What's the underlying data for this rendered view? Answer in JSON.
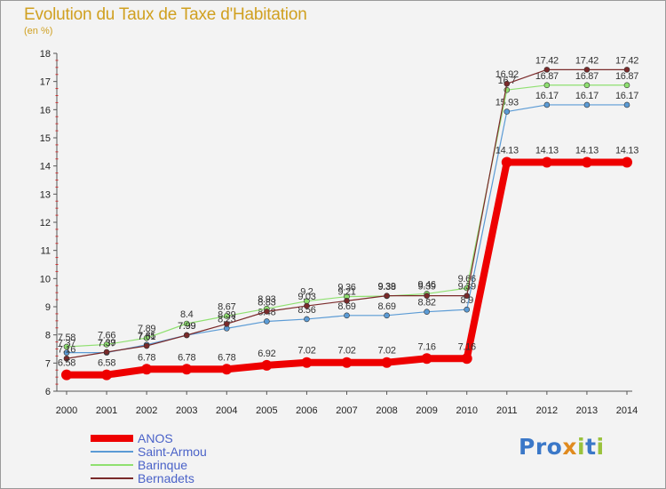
{
  "title": "Evolution du Taux de Taxe d'Habitation",
  "unit": "(en %)",
  "logo": "Proxiti",
  "colors": {
    "ANOS": "#ee0000",
    "Saint-Armou": "#5b9bd5",
    "Barinque": "#8fe070",
    "Bernadets": "#7a2a2a",
    "axis_text": "#222222",
    "legend_text": "#4a62c8",
    "title": "#d0a020"
  },
  "chart_data": {
    "type": "line",
    "x": [
      2000,
      2001,
      2002,
      2003,
      2004,
      2005,
      2006,
      2007,
      2008,
      2009,
      2010,
      2011,
      2012,
      2013,
      2014
    ],
    "ylim": [
      6,
      18
    ],
    "yticks": [
      6,
      7,
      8,
      9,
      10,
      11,
      12,
      13,
      14,
      15,
      16,
      17,
      18
    ],
    "grid": false,
    "legend_position": "bottom-left",
    "series": [
      {
        "name": "ANOS",
        "values": [
          6.58,
          6.58,
          6.78,
          6.78,
          6.78,
          6.92,
          7.02,
          7.02,
          7.02,
          7.16,
          7.16,
          14.13,
          14.13,
          14.13,
          14.13
        ],
        "labels": [
          "6.58",
          "6.58",
          "6.78",
          "6.78",
          "6.78",
          "6.92",
          "7.02",
          "7.02",
          "7.02",
          "7.16",
          "7.16",
          "14.13",
          "14.13",
          "14.13",
          "14.13"
        ]
      },
      {
        "name": "Saint-Armou",
        "values": [
          7.37,
          7.37,
          7.65,
          7.99,
          8.23,
          8.48,
          8.56,
          8.69,
          8.69,
          8.82,
          8.9,
          15.93,
          16.17,
          16.17,
          16.17
        ],
        "labels": [
          "7.37",
          "7.37",
          "7.65",
          "7.99",
          "8.23",
          "8.48",
          "8.56",
          "8.69",
          "8.69",
          "8.82",
          "8.9",
          "15.93",
          "16.17",
          "16.17",
          "16.17"
        ]
      },
      {
        "name": "Barinque",
        "values": [
          7.58,
          7.66,
          7.89,
          8.4,
          8.67,
          8.93,
          9.2,
          9.36,
          9.38,
          9.46,
          9.66,
          16.7,
          16.87,
          16.87,
          16.87
        ],
        "labels": [
          "7.58",
          "7.66",
          "7.89",
          "8.4",
          "8.67",
          "8.93",
          "9.2",
          "9.36",
          "9.38",
          "9.46",
          "9.66",
          "16.7",
          "16.87",
          "16.87",
          "16.87"
        ]
      },
      {
        "name": "Bernadets",
        "values": [
          7.16,
          7.39,
          7.61,
          7.99,
          8.39,
          8.83,
          9.03,
          9.21,
          9.39,
          9.39,
          9.39,
          16.92,
          17.42,
          17.42,
          17.42
        ],
        "labels": [
          "7.16",
          "7.39",
          "7.61",
          "7.99",
          "8.39",
          "8.83",
          "9.03",
          "9.21",
          "9.39",
          "9.39",
          "9.39",
          "16.92",
          "17.42",
          "17.42",
          "17.42"
        ]
      }
    ]
  }
}
